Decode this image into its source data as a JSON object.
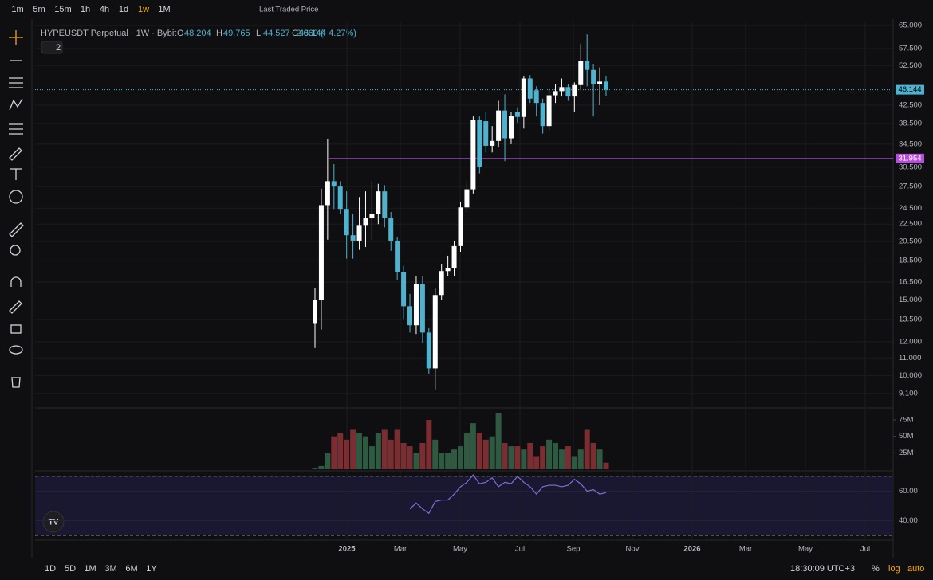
{
  "toolbar": {
    "intervals": [
      "1m",
      "5m",
      "15m",
      "1h",
      "4h",
      "1d",
      "1w",
      "1M"
    ],
    "active": 6,
    "price_source": "Last Traded Price"
  },
  "header": {
    "symbol": "HYPEUSDT Perpetual · 1W · Bybit",
    "ohlc_letters": [
      "O",
      "H",
      "L",
      "C"
    ],
    "ohlc": [
      48.204,
      49.765,
      44.527,
      46.144
    ],
    "change": "−2.060 (−4.27%)",
    "indicators": "2"
  },
  "price_axis": {
    "log": true,
    "ylim": [
      8.42,
      65.6
    ],
    "ticks": [
      {
        "value": 65,
        "label": "65.000"
      },
      {
        "value": 57.5,
        "label": "57.500"
      },
      {
        "value": 52.5,
        "label": "52.500"
      },
      {
        "value": 42.5,
        "label": "42.500"
      },
      {
        "value": 38.5,
        "label": "38.500"
      },
      {
        "value": 34.5,
        "label": "34.500"
      },
      {
        "value": 30.5,
        "label": "30.500"
      },
      {
        "value": 27.5,
        "label": "27.500"
      },
      {
        "value": 24.5,
        "label": "24.500"
      },
      {
        "value": 22.5,
        "label": "22.500"
      },
      {
        "value": 20.5,
        "label": "20.500"
      },
      {
        "value": 18.5,
        "label": "18.500"
      },
      {
        "value": 16.5,
        "label": "16.500"
      },
      {
        "value": 15,
        "label": "15.000"
      },
      {
        "value": 13.5,
        "label": "13.500"
      },
      {
        "value": 12,
        "label": "12.000"
      },
      {
        "value": 11,
        "label": "11.000"
      },
      {
        "value": 10,
        "label": "10.000"
      },
      {
        "value": 9.1,
        "label": "9.100"
      }
    ],
    "last_price": 46.144,
    "level": 31.954
  },
  "colors": {
    "up": "#ffffff",
    "down": "#4fb3cf",
    "vol_up": "#2f5a41",
    "vol_down": "#7a2e31",
    "level": "#b44fd6",
    "rsi": "#7e6fd6"
  },
  "candles": [
    [
      13.2,
      16,
      11.6,
      15
    ],
    [
      15,
      27.2,
      12.8,
      24.9
    ],
    [
      24.9,
      35.5,
      20.7,
      28.3
    ],
    [
      28.3,
      31,
      24.4,
      27.5
    ],
    [
      27.5,
      28.3,
      23.8,
      24.4
    ],
    [
      24.4,
      26.8,
      18.7,
      21.2
    ],
    [
      21.2,
      23.8,
      18.7,
      20.6
    ],
    [
      20.6,
      26,
      19.6,
      22.3
    ],
    [
      22.3,
      26.8,
      19.9,
      23.2
    ],
    [
      23.2,
      28.3,
      20.7,
      23.8
    ],
    [
      23.8,
      27.9,
      22.5,
      26.8
    ],
    [
      26.8,
      27.7,
      22.1,
      23.2
    ],
    [
      23.2,
      24,
      19.5,
      20.6
    ],
    [
      20.6,
      21,
      16.7,
      17.4
    ],
    [
      17.4,
      18,
      13.5,
      14.5
    ],
    [
      14.5,
      15.5,
      12.6,
      13.1
    ],
    [
      13.1,
      17,
      12.5,
      16.3
    ],
    [
      16.3,
      17,
      11.9,
      12.6
    ],
    [
      12.6,
      12.9,
      10.1,
      10.4
    ],
    [
      10.4,
      16,
      9.3,
      15.4
    ],
    [
      15.4,
      18.2,
      15,
      17.5
    ],
    [
      17.5,
      19,
      17,
      17.8
    ],
    [
      17.8,
      20.6,
      17,
      20
    ],
    [
      20,
      25.3,
      19.4,
      24.6
    ],
    [
      24.6,
      28.3,
      24,
      27.1
    ],
    [
      27.1,
      40,
      26.5,
      39.3
    ],
    [
      39.3,
      40,
      29.5,
      30.5
    ],
    [
      39,
      41,
      33,
      34.2
    ],
    [
      34.2,
      38,
      33,
      35.1
    ],
    [
      35.1,
      43.5,
      34,
      41.3
    ],
    [
      41.3,
      45,
      31.5,
      35.6
    ],
    [
      35.6,
      41,
      34.5,
      40.1
    ],
    [
      40.9,
      42,
      38.5,
      39.9
    ],
    [
      39.9,
      49.7,
      37.5,
      49
    ],
    [
      49,
      49.9,
      43,
      44
    ],
    [
      46,
      47,
      40,
      43
    ],
    [
      43,
      44,
      36.5,
      38
    ],
    [
      38,
      46,
      36.9,
      44.8
    ],
    [
      44.8,
      47.5,
      43,
      45.8
    ],
    [
      45.8,
      49,
      44.5,
      46.8
    ],
    [
      46.8,
      47.5,
      43.5,
      44.5
    ],
    [
      44.5,
      48,
      41,
      47.3
    ],
    [
      47.3,
      59,
      46,
      53.8
    ],
    [
      53.8,
      62,
      47,
      51.3
    ],
    [
      51.3,
      53,
      40,
      47.5
    ],
    [
      47.5,
      52,
      42.5,
      48.2
    ],
    [
      48.204,
      49.765,
      44.527,
      46.144
    ]
  ],
  "volume": {
    "ylim": [
      0,
      92
    ],
    "ticks": [
      {
        "value": 75,
        "label": "75M"
      },
      {
        "value": 50,
        "label": "50M"
      },
      {
        "value": 25,
        "label": "25M"
      }
    ],
    "values": [
      2,
      5,
      25,
      50,
      55,
      45,
      60,
      55,
      50,
      35,
      55,
      60,
      45,
      60,
      40,
      35,
      25,
      40,
      75,
      45,
      25,
      25,
      30,
      35,
      55,
      70,
      55,
      45,
      50,
      85,
      40,
      35,
      35,
      30,
      40,
      20,
      35,
      45,
      40,
      30,
      35,
      20,
      30,
      60,
      40,
      30,
      10
    ]
  },
  "rsi": {
    "ylim": [
      26.8,
      73.2
    ],
    "ticks": [
      {
        "value": 60,
        "label": "60.00"
      },
      {
        "value": 40,
        "label": "40.00"
      }
    ],
    "bands": [
      70,
      30
    ],
    "values": [
      null,
      null,
      null,
      null,
      null,
      null,
      null,
      null,
      null,
      null,
      null,
      null,
      null,
      null,
      null,
      48,
      52,
      48,
      45,
      53,
      54,
      54,
      58,
      63,
      66,
      71,
      65,
      66,
      69,
      63,
      66,
      65,
      70,
      66,
      63,
      58,
      63,
      64,
      64,
      63,
      64,
      68,
      65,
      60,
      61,
      58,
      59
    ]
  },
  "time_axis": [
    "2025",
    "Mar",
    "May",
    "Jul",
    "Sep",
    "Nov",
    "2026",
    "Mar",
    "May",
    "Jul"
  ],
  "bottom": {
    "ranges": [
      "1D",
      "5D",
      "1M",
      "3M",
      "6M",
      "1Y"
    ],
    "clock": "18:30:09 UTC+3",
    "percent": "%",
    "log": "log",
    "auto": "auto"
  }
}
